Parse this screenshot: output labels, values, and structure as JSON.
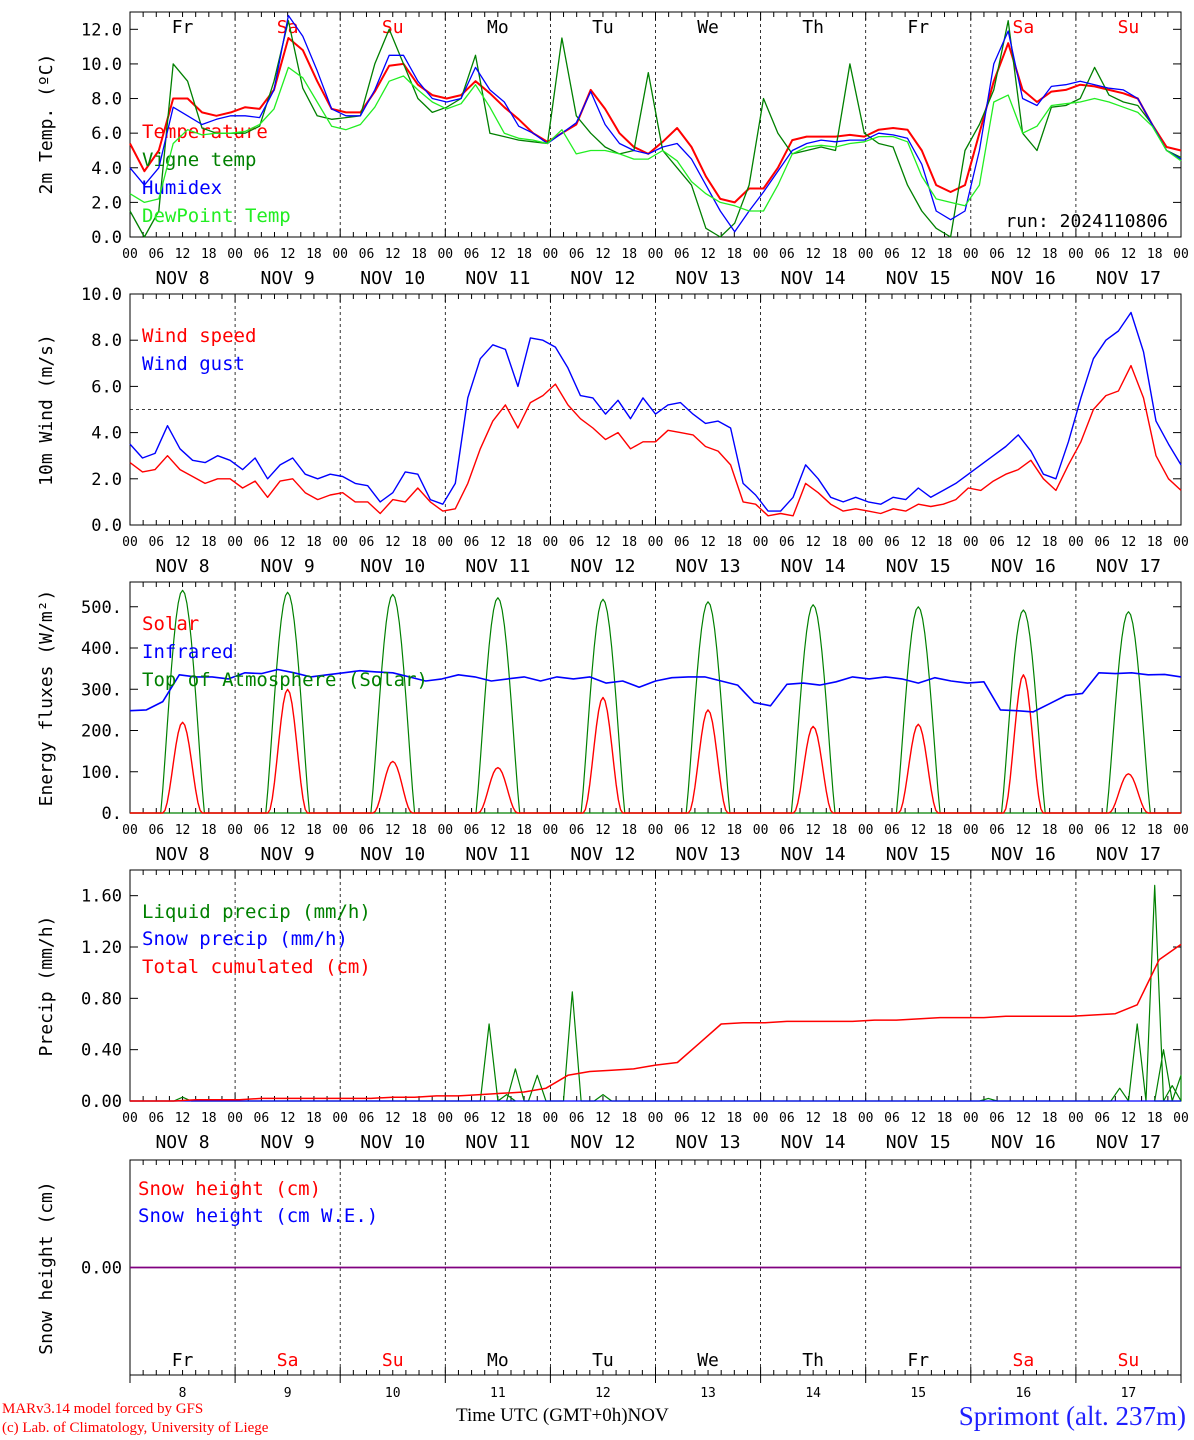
{
  "footer": {
    "credit_line1": "MARv3.14 model forced by GFS",
    "credit_line2": "(c) Lab. of Climatology, University of Liege",
    "axis_title": "Time UTC (GMT+0h)",
    "axis_unit": "NOV",
    "station": "Sprimont (alt. 237m)"
  },
  "colors": {
    "red": "#ff0000",
    "blue": "#0000ff",
    "dark_green": "#008000",
    "light_green": "#22ee22",
    "purple": "#800080",
    "weekday_black": "#000000",
    "weekend_red": "#ff0000"
  },
  "chart_data": [
    {
      "type": "line",
      "ylabel": "2m Temp. (ºC)",
      "ylim": [
        0,
        13
      ],
      "yticks": [
        "0.0",
        "2.0",
        "4.0",
        "6.0",
        "8.0",
        "10.0",
        "12.0"
      ],
      "day_labels": [
        "Fr",
        "Sa",
        "Su",
        "Mo",
        "Tu",
        "We",
        "Th",
        "Fr",
        "Sa",
        "Su"
      ],
      "weekend": [
        false,
        true,
        true,
        false,
        false,
        false,
        false,
        false,
        true,
        true
      ],
      "date_labels": [
        "NOV  8",
        "NOV  9",
        "NOV 10",
        "NOV 11",
        "NOV 12",
        "NOV 13",
        "NOV 14",
        "NOV 15",
        "NOV 16",
        "NOV 17"
      ],
      "hour_labels": [
        "00",
        "06",
        "12",
        "18"
      ],
      "x_hours": [
        0,
        3,
        6,
        9,
        12,
        15,
        18,
        21,
        24,
        27,
        30,
        33,
        36,
        39,
        42,
        45,
        48,
        51,
        54,
        57,
        60,
        63,
        66,
        69,
        72,
        75,
        78,
        81,
        84,
        87,
        90,
        93,
        96,
        99,
        102,
        105,
        108,
        111,
        114,
        117,
        120,
        123,
        126,
        129,
        132,
        135,
        138,
        141,
        144,
        147,
        150,
        153,
        156,
        159,
        162,
        165,
        168,
        171,
        174,
        177,
        180,
        183,
        186,
        189,
        192,
        195,
        198,
        201,
        204,
        207,
        210,
        213,
        216,
        219,
        222,
        225,
        228,
        231,
        234,
        237,
        240
      ],
      "note": "run: 2024110806",
      "series": [
        {
          "name": "Temperature",
          "color_key": "red",
          "values": [
            5.4,
            3.8,
            5.0,
            8.0,
            8.0,
            7.2,
            7.0,
            7.2,
            7.5,
            7.4,
            8.5,
            11.5,
            10.8,
            9.0,
            7.4,
            7.2,
            7.2,
            8.4,
            9.9,
            10.0,
            8.8,
            8.2,
            8.0,
            8.2,
            9.0,
            8.3,
            7.5,
            6.8,
            6.0,
            5.5,
            6.0,
            6.5,
            8.5,
            7.4,
            6.0,
            5.2,
            4.8,
            5.5,
            6.3,
            5.2,
            3.5,
            2.2,
            2.0,
            2.8,
            2.8,
            4.0,
            5.6,
            5.8,
            5.8,
            5.8,
            5.9,
            5.8,
            6.2,
            6.3,
            6.2,
            5.0,
            3.0,
            2.6,
            3.0,
            6.0,
            9.0,
            11.2,
            8.5,
            7.8,
            8.4,
            8.5,
            8.8,
            8.7,
            8.5,
            8.3,
            8.0,
            6.5,
            5.2,
            5.0
          ]
        },
        {
          "name": "Vigne temp",
          "color_key": "dark_green",
          "values": [
            1.5,
            0.0,
            1.5,
            10.0,
            9.0,
            6.3,
            6.0,
            6.0,
            6.0,
            6.4,
            9.0,
            12.5,
            8.6,
            7.0,
            6.8,
            6.9,
            7.0,
            10.0,
            12.0,
            10.0,
            8.0,
            7.2,
            7.5,
            8.0,
            10.5,
            6.0,
            5.8,
            5.6,
            5.5,
            5.4,
            11.5,
            7.0,
            6.0,
            5.2,
            4.8,
            5.0,
            9.5,
            5.0,
            4.0,
            3.0,
            0.5,
            0.0,
            0.8,
            3.0,
            8.0,
            6.0,
            4.8,
            5.0,
            5.2,
            5.0,
            10.0,
            6.0,
            5.4,
            5.2,
            3.0,
            1.5,
            0.5,
            0.0,
            5.0,
            6.5,
            8.5,
            12.5,
            6.0,
            5.0,
            7.5,
            7.6,
            8.0,
            9.8,
            8.2,
            7.8,
            7.6,
            6.5,
            5.0,
            4.6
          ]
        },
        {
          "name": "Humidex",
          "color_key": "blue",
          "values": [
            4.0,
            3.0,
            4.0,
            7.5,
            7.0,
            6.5,
            6.8,
            7.0,
            7.0,
            6.9,
            8.5,
            12.8,
            11.6,
            9.6,
            7.4,
            7.0,
            7.0,
            8.5,
            10.5,
            10.5,
            9.0,
            8.0,
            7.8,
            8.0,
            9.8,
            8.5,
            7.8,
            6.4,
            6.0,
            5.4,
            6.0,
            6.6,
            8.4,
            6.5,
            5.4,
            5.0,
            4.8,
            5.2,
            5.4,
            4.5,
            3.0,
            1.5,
            0.3,
            1.5,
            2.6,
            3.8,
            5.0,
            5.4,
            5.6,
            5.5,
            5.6,
            5.6,
            6.0,
            5.9,
            5.7,
            4.2,
            1.5,
            1.0,
            1.5,
            5.0,
            10.0,
            11.9,
            8.0,
            7.6,
            8.7,
            8.8,
            9.0,
            8.8,
            8.6,
            8.5,
            8.0,
            6.5,
            5.0,
            4.5
          ]
        },
        {
          "name": "DewPoint Temp",
          "color_key": "light_green",
          "values": [
            2.5,
            2.0,
            2.2,
            5.4,
            6.2,
            5.9,
            6.0,
            6.0,
            6.1,
            6.5,
            7.4,
            9.8,
            9.2,
            7.8,
            6.4,
            6.2,
            6.5,
            7.5,
            9.0,
            9.3,
            8.5,
            7.8,
            7.4,
            7.7,
            8.8,
            7.5,
            6.0,
            5.7,
            5.6,
            5.4,
            6.2,
            4.8,
            5.0,
            5.0,
            4.8,
            4.5,
            4.5,
            5.0,
            4.4,
            3.2,
            2.5,
            2.0,
            1.8,
            1.5,
            1.5,
            3.0,
            4.8,
            5.2,
            5.3,
            5.2,
            5.4,
            5.5,
            5.8,
            5.8,
            5.5,
            3.5,
            2.2,
            2.0,
            1.8,
            3.0,
            7.8,
            8.2,
            6.0,
            6.4,
            7.6,
            7.7,
            7.8,
            8.0,
            7.8,
            7.5,
            7.2,
            6.4,
            5.0,
            4.4
          ]
        }
      ]
    },
    {
      "type": "line",
      "ylabel": "10m Wind (m/s)",
      "ylim": [
        0,
        10
      ],
      "yticks": [
        "0.0",
        "2.0",
        "4.0",
        "6.0",
        "8.0",
        "10.0"
      ],
      "reference_line": 5.0,
      "series": [
        {
          "name": "Wind speed",
          "color_key": "red",
          "values": [
            2.7,
            2.3,
            2.4,
            3.0,
            2.4,
            2.1,
            1.8,
            2.0,
            2.0,
            1.6,
            1.9,
            1.2,
            1.9,
            2.0,
            1.4,
            1.1,
            1.3,
            1.4,
            1.0,
            1.0,
            0.5,
            1.1,
            1.0,
            1.6,
            1.0,
            0.6,
            0.7,
            1.8,
            3.3,
            4.5,
            5.2,
            4.2,
            5.3,
            5.6,
            6.1,
            5.2,
            4.6,
            4.2,
            3.7,
            4.0,
            3.3,
            3.6,
            3.6,
            4.1,
            4.0,
            3.9,
            3.4,
            3.2,
            2.6,
            1.0,
            0.9,
            0.4,
            0.5,
            0.4,
            1.8,
            1.4,
            0.9,
            0.6,
            0.7,
            0.6,
            0.5,
            0.7,
            0.6,
            0.9,
            0.8,
            0.9,
            1.1,
            1.6,
            1.5,
            1.9,
            2.2,
            2.4,
            2.8,
            2.0,
            1.5,
            2.6,
            3.6,
            5.0,
            5.6,
            5.8,
            6.9,
            5.5,
            3.0,
            2.0,
            1.5
          ]
        },
        {
          "name": "Wind gust",
          "color_key": "blue",
          "values": [
            3.5,
            2.9,
            3.1,
            4.3,
            3.3,
            2.8,
            2.7,
            3.0,
            2.8,
            2.4,
            2.9,
            2.0,
            2.6,
            2.9,
            2.2,
            2.0,
            2.2,
            2.1,
            1.8,
            1.7,
            1.0,
            1.4,
            2.3,
            2.2,
            1.1,
            0.9,
            1.8,
            5.5,
            7.2,
            7.8,
            7.6,
            6.0,
            8.1,
            8.0,
            7.7,
            6.8,
            5.6,
            5.5,
            4.8,
            5.4,
            4.6,
            5.5,
            4.8,
            5.2,
            5.3,
            4.8,
            4.4,
            4.5,
            4.2,
            1.8,
            1.3,
            0.6,
            0.6,
            1.2,
            2.6,
            2.0,
            1.2,
            1.0,
            1.2,
            1.0,
            0.9,
            1.2,
            1.1,
            1.6,
            1.2,
            1.5,
            1.8,
            2.2,
            2.6,
            3.0,
            3.4,
            3.9,
            3.2,
            2.2,
            2.0,
            3.6,
            5.5,
            7.2,
            8.0,
            8.4,
            9.2,
            7.5,
            4.5,
            3.5,
            2.6
          ]
        }
      ]
    },
    {
      "type": "line",
      "ylabel": "Energy fluxes (W/m²)",
      "ylim": [
        0,
        560
      ],
      "yticks": [
        "0.",
        "100.",
        "200.",
        "300.",
        "400.",
        "500."
      ],
      "series": [
        {
          "name": "Solar",
          "color_key": "red",
          "peaks": [
            220,
            300,
            125,
            110,
            280,
            250,
            210,
            215,
            335,
            95
          ]
        },
        {
          "name": "Infrared",
          "color_key": "blue",
          "values": [
            248,
            250,
            270,
            335,
            330,
            330,
            325,
            340,
            338,
            348,
            340,
            330,
            335,
            340,
            345,
            342,
            340,
            330,
            320,
            325,
            335,
            330,
            320,
            325,
            330,
            320,
            330,
            325,
            330,
            315,
            320,
            305,
            320,
            328,
            330,
            330,
            320,
            310,
            268,
            260,
            312,
            315,
            310,
            318,
            330,
            325,
            330,
            325,
            315,
            328,
            320,
            315,
            318,
            250,
            248,
            245,
            265,
            285,
            290,
            340,
            338,
            340,
            335,
            336,
            330
          ]
        },
        {
          "name": "Top of Atmosphere (Solar)",
          "color_key": "dark_green",
          "peaks": [
            540,
            535,
            530,
            522,
            518,
            512,
            505,
            500,
            492,
            488
          ]
        }
      ]
    },
    {
      "type": "line",
      "ylabel": "Precip (mm/h)",
      "ylim": [
        0,
        1.8
      ],
      "yticks": [
        "0.00",
        "0.40",
        "0.80",
        "1.20",
        "1.60"
      ],
      "series": [
        {
          "name": "Liquid precip (mm/h)",
          "color_key": "dark_green",
          "spikes": [
            [
              12,
              0.03
            ],
            [
              82,
              0.6
            ],
            [
              86,
              0.05
            ],
            [
              88,
              0.25
            ],
            [
              93,
              0.2
            ],
            [
              101,
              0.85
            ],
            [
              108,
              0.05
            ],
            [
              196,
              0.02
            ],
            [
              226,
              0.1
            ],
            [
              230,
              0.6
            ],
            [
              234,
              1.68
            ],
            [
              236,
              0.4
            ],
            [
              238,
              0.12
            ],
            [
              240,
              0.2
            ]
          ]
        },
        {
          "name": "Snow precip (mm/h)",
          "color_key": "blue",
          "values": [
            0.0,
            0.0
          ]
        },
        {
          "name": "Total cumulated (cm)",
          "color_key": "red",
          "values": [
            0.0,
            0.0,
            0.0,
            0.01,
            0.01,
            0.01,
            0.02,
            0.02,
            0.02,
            0.02,
            0.02,
            0.02,
            0.03,
            0.03,
            0.04,
            0.04,
            0.05,
            0.06,
            0.07,
            0.1,
            0.2,
            0.23,
            0.24,
            0.25,
            0.28,
            0.3,
            0.45,
            0.6,
            0.61,
            0.61,
            0.62,
            0.62,
            0.62,
            0.62,
            0.63,
            0.63,
            0.64,
            0.65,
            0.65,
            0.65,
            0.66,
            0.66,
            0.66,
            0.66,
            0.67,
            0.68,
            0.75,
            1.1,
            1.22
          ]
        }
      ]
    },
    {
      "type": "line",
      "ylabel": "Snow height (cm)",
      "yticks": [
        "0.00"
      ],
      "day_numbers": [
        "8",
        "9",
        "10",
        "11",
        "12",
        "13",
        "14",
        "15",
        "16",
        "17"
      ],
      "series": [
        {
          "name": "Snow height (cm)",
          "color_key": "red",
          "values": [
            0,
            0
          ]
        },
        {
          "name": "Snow height (cm W.E.)",
          "color_key": "blue",
          "values": [
            0,
            0
          ]
        }
      ]
    }
  ]
}
